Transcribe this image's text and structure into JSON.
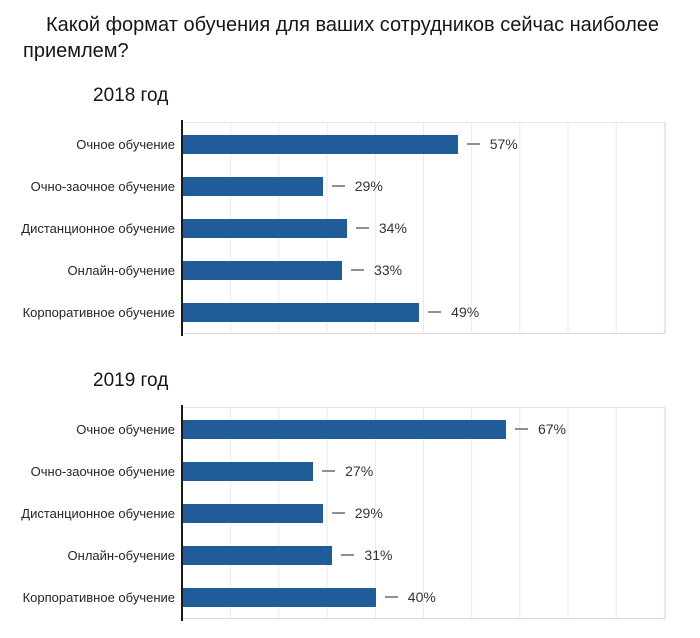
{
  "title": "Какой формат обучения для ваших сотрудников сейчас наиболее приемлем?",
  "accent_color": "#1f5c99",
  "chart_data": [
    {
      "type": "bar",
      "orientation": "horizontal",
      "title": "2018 год",
      "categories": [
        "Очное обучение",
        "Очно-заочное обучение",
        "Дистанционное обучение",
        "Онлайн-обучение",
        "Корпоративное обучение"
      ],
      "values": [
        57,
        29,
        34,
        33,
        49
      ],
      "value_suffix": "%",
      "xlim": [
        0,
        100
      ],
      "gridline_step": 10,
      "grid": true,
      "legend": false,
      "bar_color": "#1f5c99",
      "xlabel": "",
      "ylabel": ""
    },
    {
      "type": "bar",
      "orientation": "horizontal",
      "title": "2019 год",
      "categories": [
        "Очное обучение",
        "Очно-заочное обучение",
        "Дистанционное обучение",
        "Онлайн-обучение",
        "Корпоративное обучение"
      ],
      "values": [
        67,
        27,
        29,
        31,
        40
      ],
      "value_suffix": "%",
      "xlim": [
        0,
        100
      ],
      "gridline_step": 10,
      "grid": true,
      "legend": false,
      "bar_color": "#1f5c99",
      "xlabel": "",
      "ylabel": ""
    }
  ]
}
